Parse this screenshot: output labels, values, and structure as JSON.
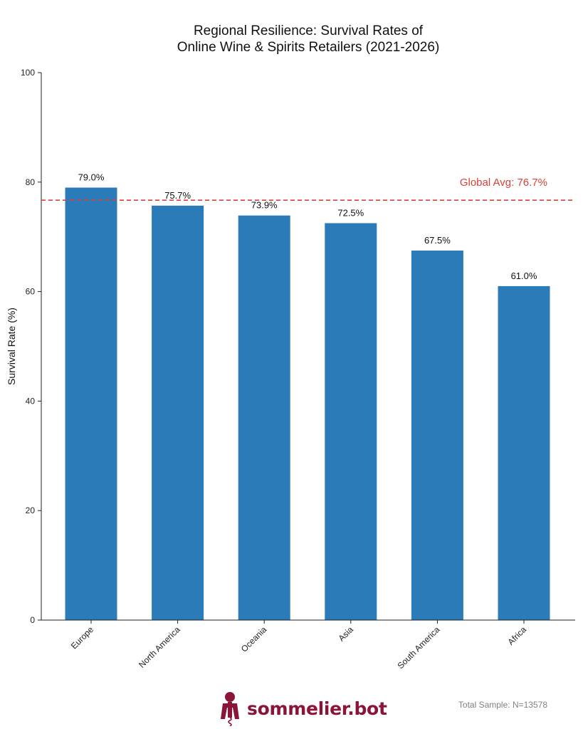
{
  "chart_data": {
    "type": "bar",
    "title_lines": [
      "Regional Resilience: Survival Rates of",
      "Online Wine & Spirits Retailers (2021-2026)"
    ],
    "xlabel": "",
    "ylabel": "Survival Rate (%)",
    "ylim": [
      0,
      100
    ],
    "yticks": [
      "0",
      "20",
      "40",
      "60",
      "80",
      "100"
    ],
    "categories": [
      "Europe",
      "North America",
      "Oceania",
      "Asia",
      "South America",
      "Africa"
    ],
    "values": [
      79.0,
      75.7,
      73.9,
      72.5,
      67.5,
      61.0
    ],
    "data_labels": [
      "79.0%",
      "75.7%",
      "73.9%",
      "72.5%",
      "67.5%",
      "61.0%"
    ],
    "reference_line": {
      "value": 76.7,
      "label": "Global Avg: 76.7%",
      "style": "dashed"
    },
    "colors": {
      "bar": "#2b7bb9",
      "reference": "#d9413a"
    },
    "grid": false
  },
  "footer": {
    "brand": "sommelier.bot",
    "brand_color": "#8a1538",
    "logo_icon": "wine-corkscrew-icon",
    "sample_note": "Total Sample: N=13578"
  }
}
